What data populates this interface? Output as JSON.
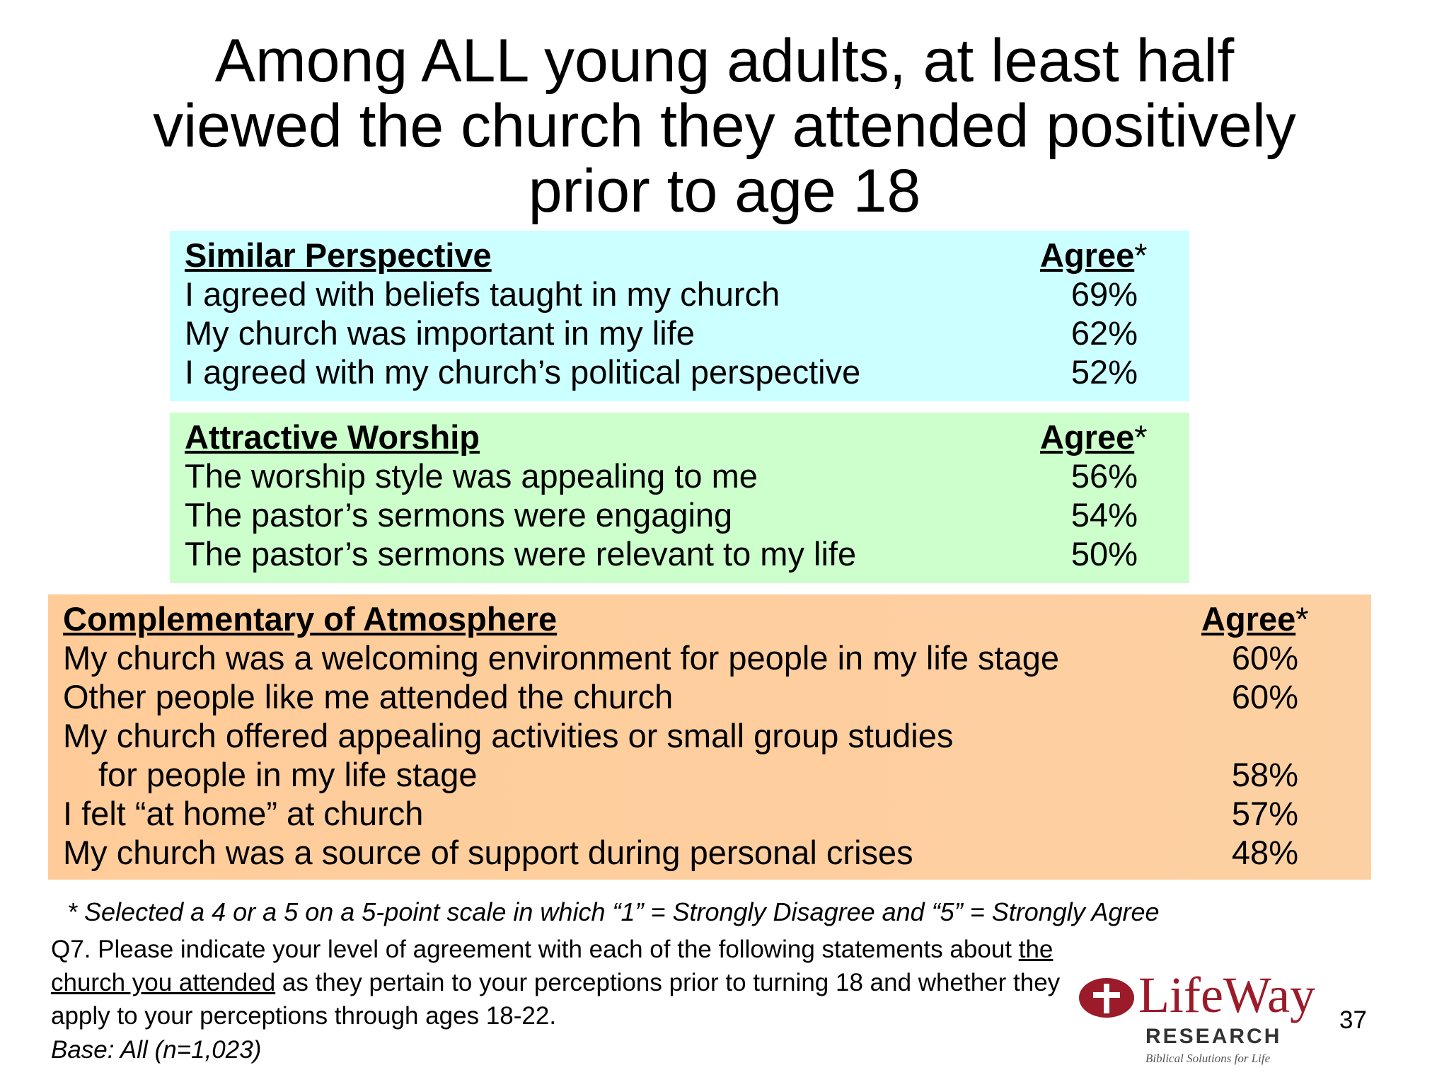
{
  "title": {
    "lines": [
      "Among ALL young adults, at least half",
      "viewed the church they attended positively",
      "prior to age 18"
    ]
  },
  "sections": [
    {
      "heading": "Similar Perspective",
      "column_label": "Agree",
      "column_marker": "*",
      "rows": [
        {
          "lines": [
            "I agreed with beliefs taught in my church"
          ],
          "value": "69%"
        },
        {
          "lines": [
            "My church was important in my life"
          ],
          "value": "62%"
        },
        {
          "lines": [
            "I agreed with my church’s political perspective"
          ],
          "value": "52%"
        }
      ]
    },
    {
      "heading": "Attractive Worship",
      "column_label": "Agree",
      "column_marker": "*",
      "rows": [
        {
          "lines": [
            "The worship style was appealing to me"
          ],
          "value": "56%"
        },
        {
          "lines": [
            "The pastor’s sermons were engaging"
          ],
          "value": "54%"
        },
        {
          "lines": [
            "The pastor’s sermons were relevant to my life"
          ],
          "value": "50%"
        }
      ]
    },
    {
      "heading": "Complementary of Atmosphere",
      "column_label": "Agree",
      "column_marker": "*",
      "rows": [
        {
          "lines": [
            "My church was a welcoming environment for people in my life stage"
          ],
          "value": "60%"
        },
        {
          "lines": [
            "Other people like me attended the church"
          ],
          "value": "60%"
        },
        {
          "lines": [
            "My church offered appealing activities or small group studies",
            "for people in my life stage"
          ],
          "value": "58%"
        },
        {
          "lines": [
            "I felt “at home” at church"
          ],
          "value": "57%"
        },
        {
          "lines": [
            "My church was a source of support during personal crises"
          ],
          "value": "48%"
        }
      ]
    }
  ],
  "footnote": "* Selected a 4 or a 5 on a 5-point scale in which “1” = Strongly Disagree and “5” = Strongly Agree",
  "question": {
    "before": "Q7. Please indicate your level of agreement with each of the following statements about ",
    "underlined": "the church you attended",
    "after": " as they pertain to your perceptions prior to turning 18 and whether they apply to your perceptions through ages 18-22."
  },
  "base": "Base: All (n=1,023)",
  "logo": {
    "name": "LifeWay",
    "subtitle": "RESEARCH",
    "tagline": "Biblical Solutions for Life"
  },
  "page_number": "37"
}
